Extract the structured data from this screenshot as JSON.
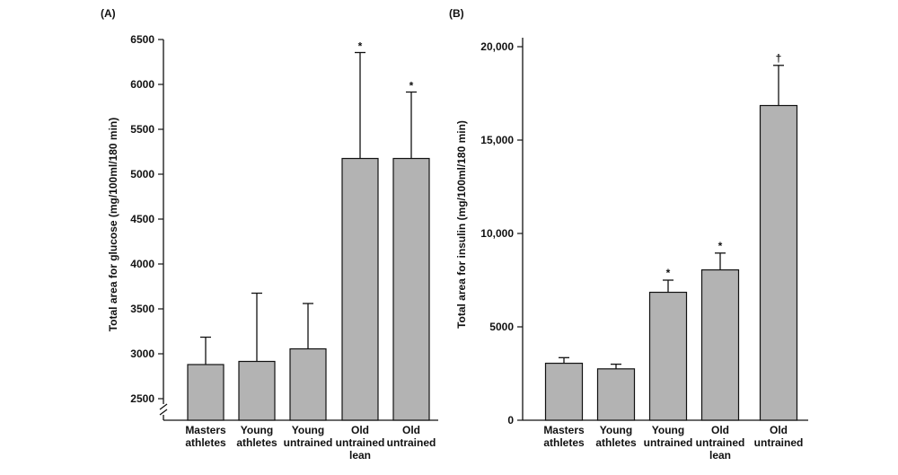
{
  "figure": {
    "bar_color": "#b3b3b3",
    "line_color": "#111111",
    "background": "#ffffff"
  },
  "chart_data": [
    {
      "id": "A",
      "type": "bar",
      "panel_label": "(A)",
      "ylabel": "Total area for glucose (mg/100ml/180 min)",
      "xlabel": "",
      "ylim": [
        2300,
        6500
      ],
      "axis_break": true,
      "yticks": [
        2500,
        3000,
        3500,
        4000,
        4500,
        5000,
        5500,
        6000,
        6500
      ],
      "ytick_labels": [
        "2500",
        "3000",
        "3500",
        "4000",
        "4500",
        "5000",
        "5500",
        "6000",
        "6500"
      ],
      "categories": [
        [
          "Masters",
          "athletes"
        ],
        [
          "Young",
          "athletes"
        ],
        [
          "Young",
          "untrained"
        ],
        [
          "Old",
          "untrained",
          "lean"
        ],
        [
          "Old",
          "untrained"
        ]
      ],
      "values": [
        2880,
        2915,
        3055,
        5175,
        5175
      ],
      "error_upper": [
        3185,
        3675,
        3560,
        6355,
        5915
      ],
      "markers": [
        "",
        "",
        "",
        "*",
        "*"
      ],
      "grid": false,
      "legend": "none"
    },
    {
      "id": "B",
      "type": "bar",
      "panel_label": "(B)",
      "ylabel": "Total area for insulin (mg/100ml/180 min)",
      "xlabel": "",
      "ylim": [
        0,
        20000
      ],
      "axis_break": false,
      "yticks": [
        0,
        5000,
        10000,
        15000,
        20000
      ],
      "ytick_labels": [
        "0",
        "5000",
        "10,000",
        "15,000",
        "20,000"
      ],
      "categories": [
        [
          "Masters",
          "athletes"
        ],
        [
          "Young",
          "athletes"
        ],
        [
          "Young",
          "untrained"
        ],
        [
          "Old",
          "untrained",
          "lean"
        ],
        [
          "Old",
          "untrained"
        ]
      ],
      "values": [
        3050,
        2750,
        6850,
        8050,
        16850
      ],
      "error_upper": [
        3350,
        3000,
        7500,
        8950,
        19000
      ],
      "markers": [
        "",
        "",
        "*",
        "*",
        "†"
      ],
      "grid": false,
      "legend": "none"
    }
  ]
}
